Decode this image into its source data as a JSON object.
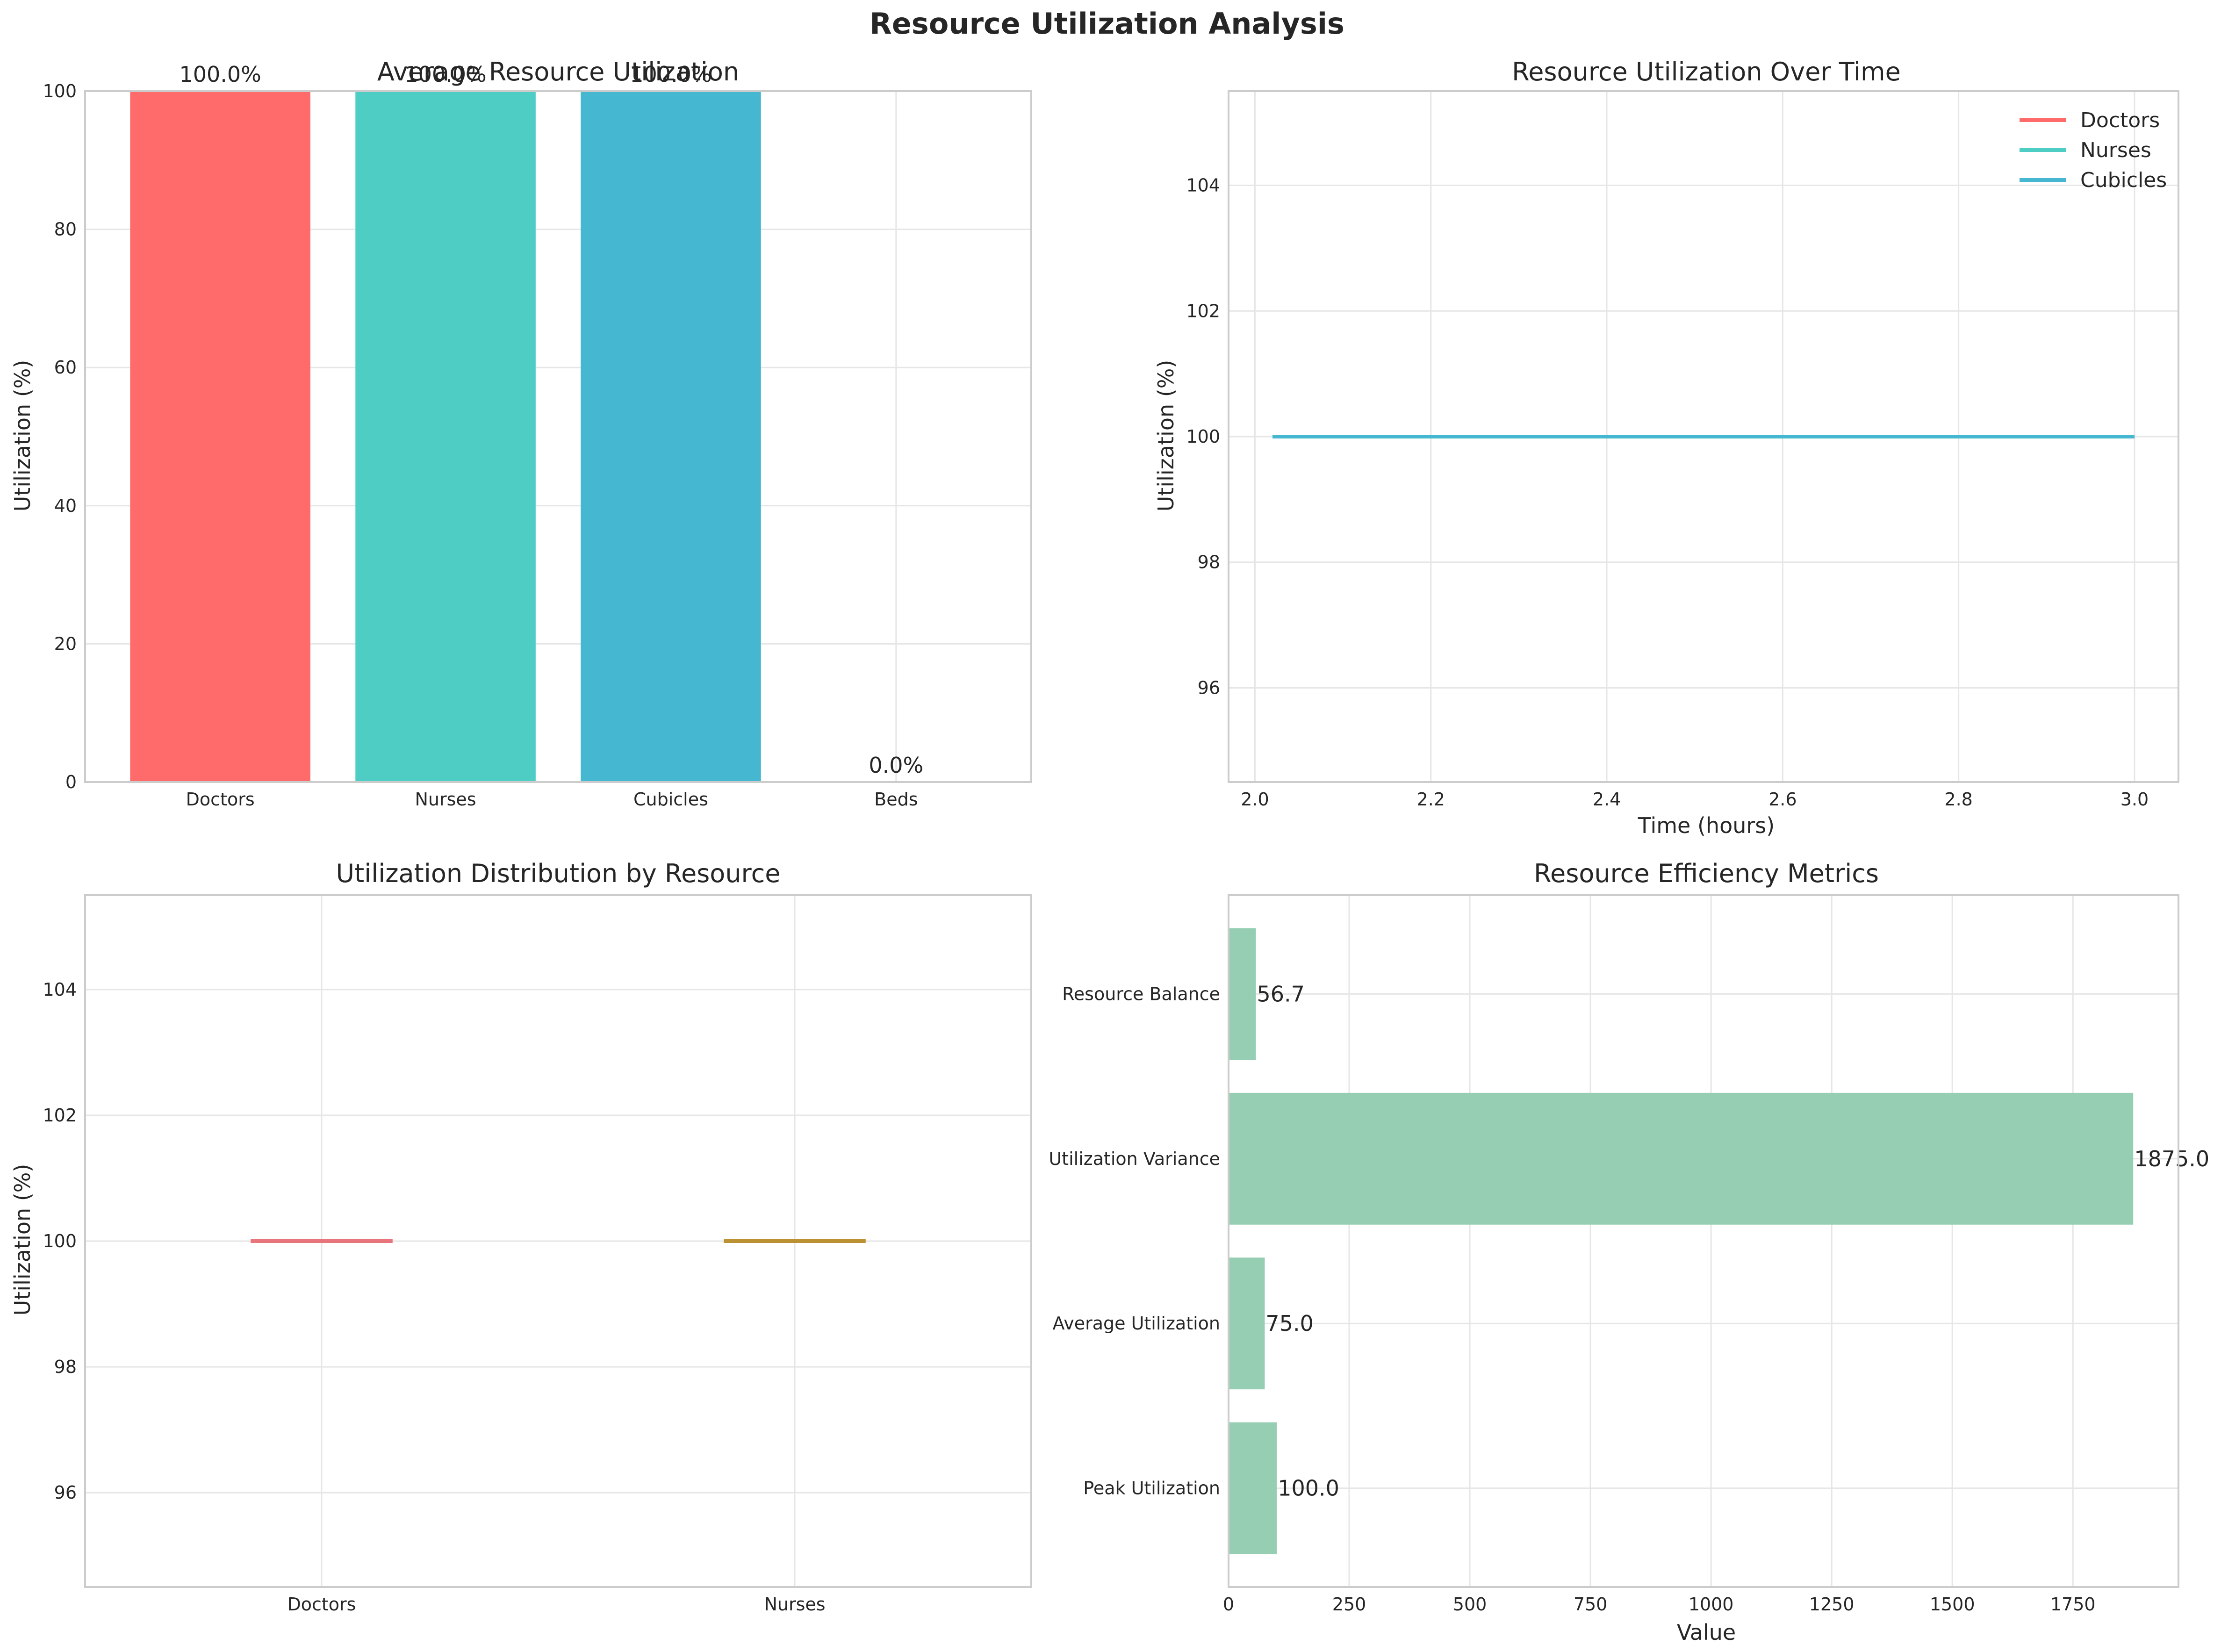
{
  "suptitle": "Resource Utilization Analysis",
  "colors": {
    "Doctors": "#FF6B6B",
    "Nurses": "#4ECDC4",
    "Cubicles": "#45B7D1",
    "Beds": "#96CEB4",
    "box_doctors": "#E8747C",
    "box_nurses": "#BA9233",
    "metrics": "#96CEB4"
  },
  "chart_data": [
    {
      "type": "bar",
      "title": "Average Resource Utilization",
      "xlabel": "",
      "ylabel": "Utilization (%)",
      "categories": [
        "Doctors",
        "Nurses",
        "Cubicles",
        "Beds"
      ],
      "values": [
        100.0,
        100.0,
        100.0,
        0.0
      ],
      "value_labels": [
        "100.0%",
        "100.0%",
        "100.0%",
        "0.0%"
      ],
      "ylim": [
        0,
        100
      ],
      "yticks": [
        0,
        20,
        40,
        60,
        80,
        100
      ],
      "grid": true
    },
    {
      "type": "line",
      "title": "Resource Utilization Over Time",
      "xlabel": "Time (hours)",
      "ylabel": "Utilization (%)",
      "xlim": [
        1.97,
        3.05
      ],
      "ylim": [
        94.5,
        105.5
      ],
      "xticks": [
        2.0,
        2.2,
        2.4,
        2.6,
        2.8,
        3.0
      ],
      "yticks": [
        96,
        98,
        100,
        102,
        104
      ],
      "legend": "top-right",
      "grid": true,
      "series": [
        {
          "name": "Doctors",
          "x": [
            2.02,
            3.0
          ],
          "y": [
            100,
            100
          ]
        },
        {
          "name": "Nurses",
          "x": [
            2.02,
            3.0
          ],
          "y": [
            100,
            100
          ]
        },
        {
          "name": "Cubicles",
          "x": [
            2.02,
            3.0
          ],
          "y": [
            100,
            100
          ]
        }
      ]
    },
    {
      "type": "box",
      "title": "Utilization Distribution by Resource",
      "xlabel": "",
      "ylabel": "Utilization (%)",
      "categories": [
        "Doctors",
        "Nurses"
      ],
      "medians": [
        100,
        100
      ],
      "ylim": [
        94.5,
        105.5
      ],
      "yticks": [
        96,
        98,
        100,
        102,
        104
      ],
      "grid": true
    },
    {
      "type": "bar",
      "orientation": "horizontal",
      "title": "Resource Efficiency Metrics",
      "xlabel": "Value",
      "ylabel": "",
      "categories": [
        "Peak Utilization",
        "Average Utilization",
        "Utilization Variance",
        "Resource Balance"
      ],
      "values": [
        100.0,
        75.0,
        1875.0,
        56.7
      ],
      "value_labels": [
        "100.0",
        "75.0",
        "1875.0",
        "56.7"
      ],
      "xlim": [
        0,
        1968.75
      ],
      "xticks": [
        0,
        250,
        500,
        750,
        1000,
        1250,
        1500,
        1750
      ],
      "grid": true
    }
  ]
}
